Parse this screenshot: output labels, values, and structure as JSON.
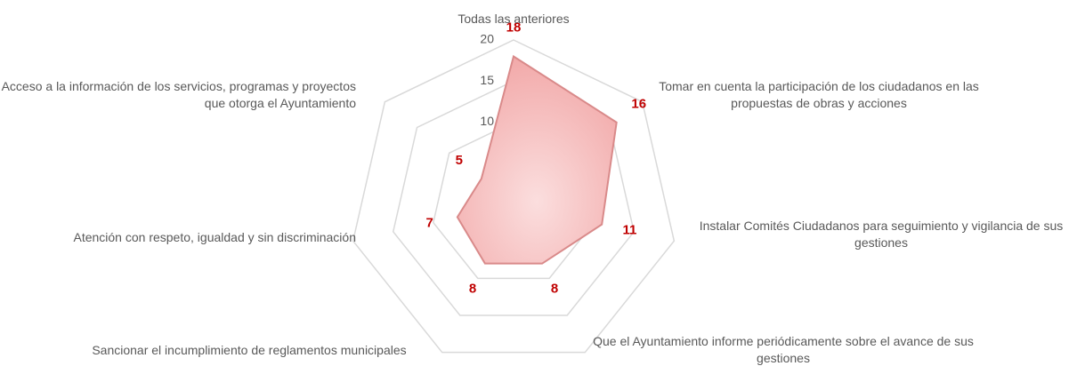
{
  "chart_data": {
    "type": "radar",
    "categories": [
      "Todas las anteriores",
      "Tomar en cuenta la participación de los ciudadanos en las propuestas de obras y acciones",
      "Instalar Comités Ciudadanos para seguimiento y vigilancia de sus gestiones",
      "Que el Ayuntamiento informe periódicamente sobre el avance de sus gestiones",
      "Sancionar el incumplimiento de reglamentos municipales",
      "Atención con respeto, igualdad y sin discriminación",
      "Acceso a la información de los servicios, programas y proyectos que otorga el Ayuntamiento"
    ],
    "values": [
      18,
      16,
      11,
      8,
      8,
      7,
      5
    ],
    "color": "#f2aaaa",
    "ylim": [
      0,
      20
    ],
    "yticks": [
      0,
      5,
      10,
      15,
      20
    ],
    "grid": true
  }
}
